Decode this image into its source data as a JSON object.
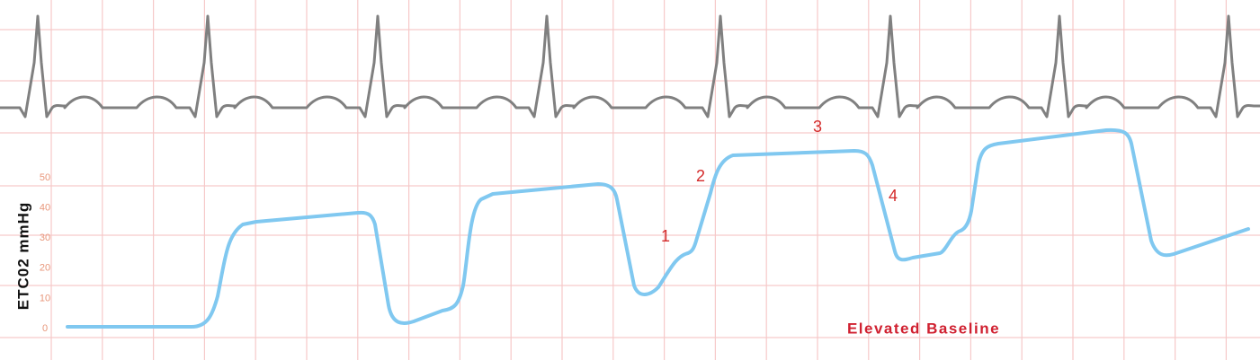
{
  "y_axis": {
    "label": "ETC02 mmHg",
    "ticks": [
      0,
      10,
      20,
      30,
      40,
      50
    ]
  },
  "annotations": {
    "phases": [
      "1",
      "2",
      "3",
      "4"
    ],
    "note": "Elevated Baseline"
  }
}
